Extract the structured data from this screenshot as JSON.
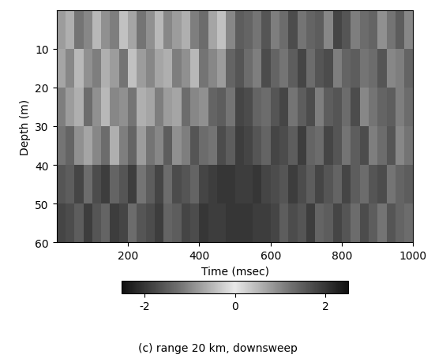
{
  "chart_data": {
    "type": "heatmap",
    "xlabel": "Time (msec)",
    "ylabel": "Depth (m)",
    "caption": "(c) range 20 km, downsweep",
    "x_edges": [
      0,
      25,
      50,
      75,
      100,
      125,
      150,
      175,
      200,
      225,
      250,
      275,
      300,
      325,
      350,
      375,
      400,
      425,
      450,
      475,
      500,
      525,
      550,
      575,
      600,
      625,
      650,
      675,
      700,
      725,
      750,
      775,
      800,
      825,
      850,
      875,
      900,
      925,
      950,
      975,
      1000
    ],
    "y_edges": [
      0,
      10,
      20,
      30,
      40,
      50,
      60
    ],
    "cells": [
      [
        0.8,
        -0.6,
        1.2,
        -1.0,
        0.5,
        -0.9,
        1.1,
        -0.4,
        0.7,
        -1.2,
        0.9,
        -0.5,
        1.0,
        -0.8,
        0.6,
        -1.1,
        1.3,
        -0.7,
        0.4,
        -1.0,
        1.5,
        -1.4,
        1.2,
        -1.6,
        1.1,
        -1.3,
        1.7,
        -1.2,
        1.4,
        -1.5,
        1.0,
        -1.8,
        1.6,
        -1.1,
        1.3,
        -1.4,
        0.9,
        -1.2,
        1.5,
        -1.0
      ],
      [
        -0.7,
        1.0,
        -0.5,
        0.9,
        -1.1,
        0.6,
        -0.8,
        1.2,
        -0.4,
        0.8,
        -1.0,
        0.7,
        -0.6,
        1.1,
        -0.9,
        0.5,
        -1.2,
        1.0,
        -0.8,
        1.4,
        -1.6,
        1.3,
        -1.1,
        1.7,
        -1.4,
        1.2,
        -1.5,
        1.8,
        -1.3,
        1.6,
        -1.7,
        1.1,
        -1.4,
        1.5,
        -1.2,
        1.3,
        -1.6,
        1.0,
        -1.1,
        1.4
      ],
      [
        1.1,
        -0.8,
        0.6,
        -1.3,
        0.9,
        -0.5,
        1.0,
        -0.9,
        1.2,
        -0.6,
        0.7,
        -1.1,
        0.8,
        -0.7,
        1.3,
        -1.0,
        0.9,
        -1.4,
        1.5,
        -1.2,
        1.8,
        -1.7,
        1.4,
        -1.3,
        1.6,
        -1.8,
        1.2,
        -1.5,
        1.7,
        -1.1,
        1.5,
        -1.6,
        1.3,
        -1.7,
        1.0,
        -1.2,
        1.4,
        -1.5,
        1.1,
        -1.3
      ],
      [
        -1.2,
        1.4,
        -0.9,
        0.7,
        -1.0,
        1.3,
        -0.6,
        1.1,
        -1.4,
        0.8,
        -1.2,
        1.0,
        -1.5,
        0.9,
        -1.1,
        1.6,
        -1.3,
        1.2,
        -1.7,
        1.5,
        -1.9,
        1.8,
        -1.6,
        1.4,
        -1.8,
        1.7,
        -1.5,
        1.9,
        -1.4,
        1.3,
        -1.8,
        1.6,
        -1.2,
        1.5,
        -1.7,
        1.1,
        -1.3,
        1.6,
        -1.0,
        1.2
      ],
      [
        1.6,
        -1.5,
        1.8,
        -1.3,
        1.7,
        -1.9,
        1.4,
        -1.6,
        1.9,
        -1.2,
        1.5,
        -1.8,
        1.3,
        -1.7,
        1.6,
        -1.4,
        1.8,
        -1.9,
        2.0,
        -2.0,
        1.9,
        -1.9,
        2.0,
        -1.8,
        1.7,
        -1.6,
        1.9,
        -1.7,
        1.5,
        -1.8,
        1.6,
        -1.4,
        1.8,
        -1.5,
        1.3,
        -1.6,
        1.7,
        -1.2,
        1.4,
        -1.5
      ],
      [
        -1.8,
        1.7,
        -1.5,
        1.9,
        -1.6,
        1.4,
        -1.9,
        1.8,
        -1.3,
        1.6,
        -1.7,
        1.9,
        -1.4,
        1.5,
        -1.8,
        1.7,
        -2.0,
        1.9,
        -1.9,
        2.0,
        -2.0,
        2.0,
        -1.9,
        1.9,
        -1.8,
        1.5,
        -1.7,
        1.6,
        -1.9,
        1.4,
        -1.5,
        1.8,
        -1.6,
        1.3,
        -1.7,
        1.5,
        -1.2,
        1.6,
        -1.4,
        1.3
      ]
    ],
    "xlim": [
      0,
      1000
    ],
    "xticks": [
      200,
      400,
      600,
      800,
      1000
    ],
    "ylim": [
      60,
      0
    ],
    "yticks": [
      10,
      20,
      30,
      40,
      50,
      60
    ],
    "colorbar_range": [
      -2.5,
      2.5
    ],
    "colorbar_ticks": [
      -2,
      0,
      2
    ]
  }
}
